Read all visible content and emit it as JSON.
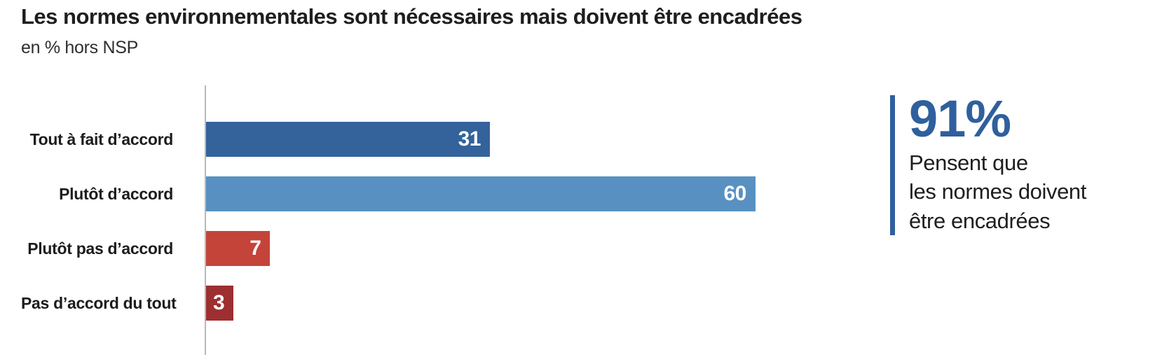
{
  "header": {
    "title": "Les normes environnementales sont nécessaires mais doivent être encadrées",
    "subtitle": "en % hors NSP"
  },
  "chart_data": {
    "type": "bar",
    "orientation": "horizontal",
    "title": "Les normes environnementales sont nécessaires mais doivent être encadrées",
    "subtitle": "en % hors NSP",
    "unit": "%",
    "categories": [
      "Tout à fait d’accord",
      "Plutôt d’accord",
      "Plutôt pas d’accord",
      "Pas d’accord du tout"
    ],
    "values": [
      31,
      60,
      7,
      3
    ],
    "bar_colors": [
      "#33639A",
      "#5891C1",
      "#C4443A",
      "#9E2F30"
    ],
    "value_label_color": "#FFFFFF",
    "axis_line_color": "#B8B8B8",
    "xlim": [
      0,
      62
    ],
    "grid": false,
    "legend": false,
    "xlabel": "",
    "ylabel": ""
  },
  "callout": {
    "percent": "91%",
    "description": "Pensent que\nles normes doivent\nêtre encadrées",
    "accent_color": "#2F5F9D"
  }
}
